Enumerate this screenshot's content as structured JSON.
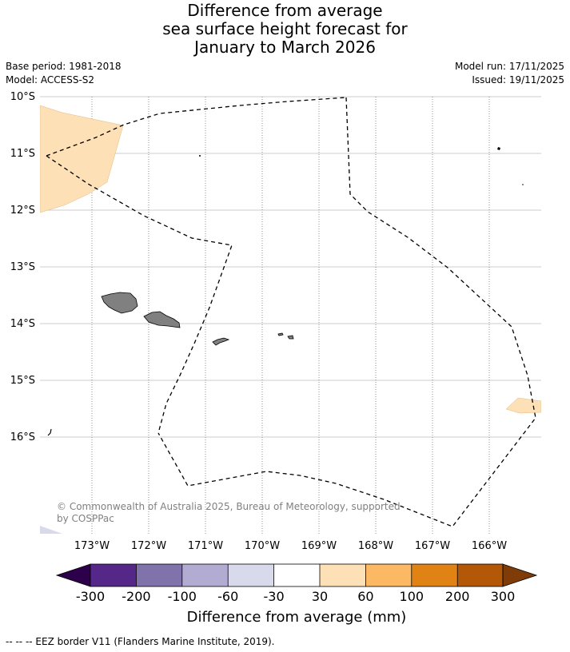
{
  "header": {
    "title_line1": "Difference from average",
    "title_line2": "sea surface height forecast for",
    "title_line3": "January to March 2026",
    "base_period": "Base period: 1981-2018",
    "model": "Model: ACCESS-S2",
    "model_run": "Model run: 17/11/2025",
    "issued": "Issued: 19/11/2025"
  },
  "map": {
    "lat_labels": [
      "10°S",
      "11°S",
      "12°S",
      "13°S",
      "14°S",
      "15°S",
      "16°S"
    ],
    "lon_labels": [
      "173°W",
      "172°W",
      "171°W",
      "170°W",
      "169°W",
      "168°W",
      "167°W",
      "166°W"
    ],
    "copyright_line1": "© Commonwealth of Australia 2025, Bureau of Meteorology, supported",
    "copyright_line2": "by COSPPac",
    "land_color": "#808080",
    "eez_color": "#000000"
  },
  "colorbar": {
    "label": "Difference from average (mm)",
    "ticks": [
      "-300",
      "-200",
      "-100",
      "-60",
      "-30",
      "30",
      "60",
      "100",
      "200",
      "300"
    ],
    "under_color": "#2d004b",
    "over_color": "#7f3b08",
    "colors": [
      "#542788",
      "#8073ac",
      "#b2abd2",
      "#d8daeb",
      "#ffffff",
      "#fee0b6",
      "#fdb863",
      "#e08214",
      "#b35806"
    ]
  },
  "footnote": "--  --  -- EEZ border V11 (Flanders Marine Institute, 2019)."
}
